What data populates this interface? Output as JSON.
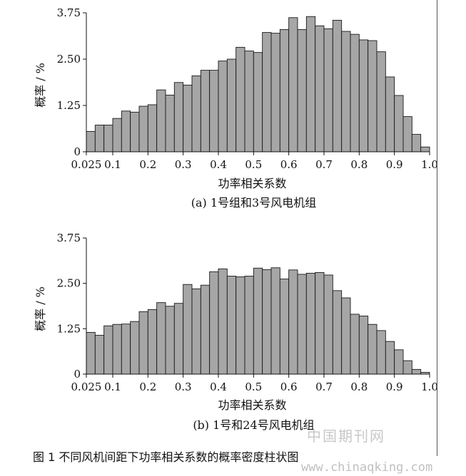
{
  "figure_caption": "图 1 不同风机间距下功率相关系数的概率密度柱状图",
  "watermark": {
    "line1": "中国期刊网",
    "line2": "www.chinaqking.com"
  },
  "chart_data": [
    {
      "type": "bar",
      "subtitle": "(a) 1号组和3号风电机组",
      "xlabel": "功率相关系数",
      "ylabel": "概率 / %",
      "xlim": [
        0.025,
        1.0
      ],
      "ylim": [
        0,
        3.75
      ],
      "xticks": [
        "0.025",
        "0.1",
        "0.2",
        "0.3",
        "0.4",
        "0.5",
        "0.6",
        "0.7",
        "0.8",
        "0.9",
        "1.0"
      ],
      "yticks": [
        "0",
        "1.25",
        "2.50",
        "3.75"
      ],
      "bar_color": "#a6a6a6",
      "values": [
        0.55,
        0.72,
        0.72,
        0.9,
        1.1,
        1.07,
        1.23,
        1.27,
        1.67,
        1.53,
        1.87,
        1.8,
        2.05,
        2.2,
        2.2,
        2.45,
        2.5,
        2.82,
        2.72,
        2.68,
        3.22,
        3.2,
        3.3,
        3.62,
        3.3,
        3.65,
        3.4,
        3.32,
        3.55,
        3.25,
        3.17,
        3.02,
        3.0,
        2.7,
        2.02,
        1.52,
        0.95,
        0.47,
        0.13
      ]
    },
    {
      "type": "bar",
      "subtitle": "(b) 1号和24号风电机组",
      "xlabel": "功率相关系数",
      "ylabel": "概率 / %",
      "xlim": [
        0.025,
        1.0
      ],
      "ylim": [
        0,
        3.75
      ],
      "xticks": [
        "0.025",
        "0.1",
        "0.2",
        "0.3",
        "0.4",
        "0.5",
        "0.6",
        "0.7",
        "0.8",
        "0.9",
        "1.0"
      ],
      "yticks": [
        "0",
        "1.25",
        "2.50",
        "3.75"
      ],
      "bar_color": "#a6a6a6",
      "values": [
        1.15,
        1.07,
        1.33,
        1.37,
        1.38,
        1.45,
        1.72,
        1.78,
        1.97,
        1.87,
        1.95,
        2.47,
        2.35,
        2.45,
        2.82,
        2.9,
        2.7,
        2.68,
        2.7,
        2.92,
        2.88,
        2.93,
        2.62,
        2.87,
        2.75,
        2.78,
        2.8,
        2.73,
        2.3,
        2.1,
        1.65,
        1.6,
        1.37,
        1.2,
        0.9,
        0.67,
        0.37,
        0.13,
        0.05
      ]
    }
  ]
}
